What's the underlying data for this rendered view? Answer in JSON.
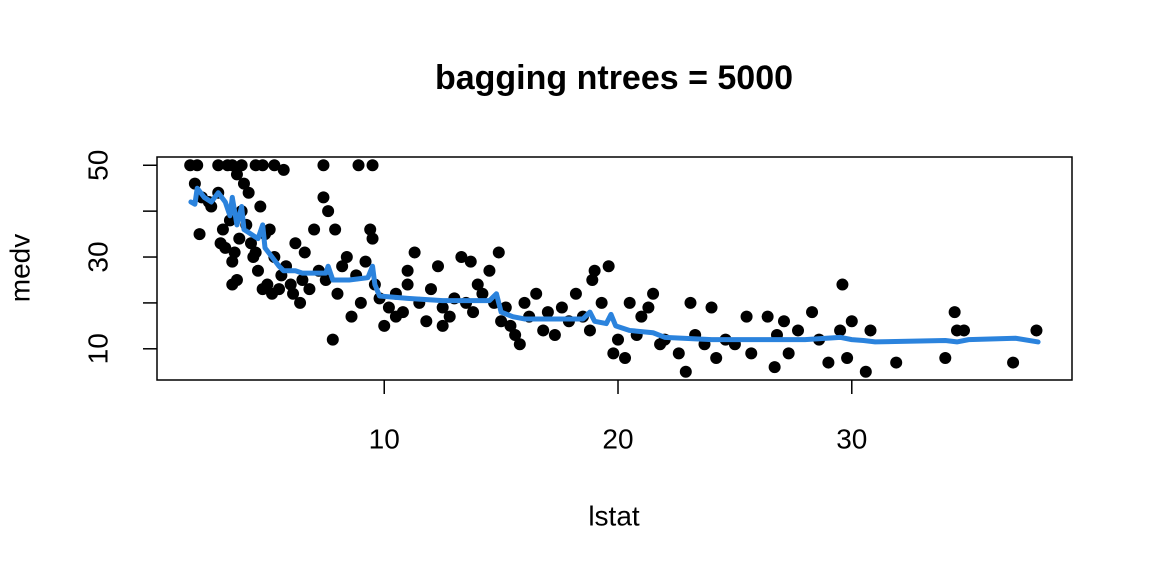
{
  "chart_data": {
    "type": "scatter",
    "title": "bagging ntrees =  5000",
    "x_label": "lstat",
    "y_label": "medv",
    "xlim": [
      0.28,
      39.42
    ],
    "ylim": [
      3.2,
      51.8
    ],
    "xticks": [
      10,
      20,
      30
    ],
    "yticks": [
      10,
      {
        "value": 20,
        "label": null
      },
      30,
      {
        "value": 40,
        "label": null
      },
      50
    ],
    "points": {
      "color": "#000000",
      "x": [
        1.7,
        2.0,
        2.9,
        3.3,
        3.5,
        3.9,
        4.5,
        4.8,
        5.3,
        7.4,
        8.9,
        9.5,
        5.7,
        3.7,
        1.9,
        2.2,
        2.6,
        3.5,
        11.0,
        18.9,
        10.5,
        12.5,
        13.7,
        2.1,
        2.5,
        2.9,
        3.0,
        3.1,
        3.2,
        3.4,
        3.5,
        3.6,
        3.7,
        3.8,
        3.9,
        4.0,
        4.1,
        4.2,
        4.3,
        4.4,
        4.5,
        4.6,
        4.7,
        4.8,
        4.9,
        5.0,
        5.1,
        5.2,
        5.3,
        5.5,
        5.6,
        5.8,
        6.0,
        6.1,
        6.2,
        6.4,
        6.5,
        6.6,
        6.8,
        7.0,
        7.2,
        7.4,
        7.5,
        7.6,
        7.8,
        7.9,
        8.0,
        8.2,
        8.4,
        8.6,
        8.8,
        9.0,
        9.2,
        9.4,
        9.5,
        9.6,
        9.8,
        10.0,
        10.2,
        10.5,
        10.8,
        11.0,
        11.3,
        11.5,
        11.8,
        12.0,
        12.3,
        12.5,
        12.8,
        13.0,
        13.3,
        13.5,
        13.8,
        14.0,
        14.2,
        14.5,
        14.7,
        14.9,
        15.0,
        15.2,
        15.4,
        15.6,
        15.8,
        16.0,
        16.2,
        16.5,
        16.8,
        17.0,
        17.3,
        17.6,
        17.9,
        18.2,
        18.5,
        18.8,
        19.0,
        19.3,
        19.6,
        19.8,
        20.0,
        20.3,
        20.5,
        20.8,
        21.0,
        21.3,
        21.5,
        21.8,
        22.0,
        22.6,
        22.9,
        23.1,
        23.3,
        23.7,
        24.0,
        24.2,
        24.6,
        25.0,
        25.5,
        25.7,
        26.4,
        26.7,
        26.8,
        27.1,
        27.3,
        27.7,
        28.3,
        28.6,
        29.0,
        29.5,
        29.6,
        29.8,
        30.0,
        30.6,
        30.8,
        31.9,
        34.0,
        34.4,
        34.5,
        34.8,
        36.9,
        37.9
      ],
      "y": [
        50,
        50,
        50,
        50,
        50,
        50,
        50,
        50,
        50,
        50,
        50,
        50,
        49,
        48,
        46,
        43,
        41,
        24,
        27,
        25,
        17,
        15,
        29,
        35,
        42,
        44,
        33,
        36,
        32,
        38,
        29,
        31,
        25,
        34,
        40,
        46,
        37,
        44,
        33,
        30,
        31,
        27,
        41,
        23,
        35,
        24,
        36,
        22,
        30,
        23,
        26,
        28,
        24,
        22,
        33,
        20,
        25,
        31,
        23,
        36,
        27,
        43,
        25,
        40,
        12,
        36,
        22,
        28,
        30,
        17,
        26,
        20,
        29,
        36,
        34,
        24,
        21,
        15,
        19,
        22,
        18,
        24,
        31,
        20,
        16,
        23,
        28,
        19,
        17,
        21,
        30,
        20,
        18,
        24,
        22,
        27,
        20,
        31,
        16,
        19,
        15,
        13,
        11,
        20,
        17,
        22,
        14,
        18,
        13,
        19,
        16,
        22,
        17,
        14,
        27,
        20,
        28,
        9,
        12,
        8,
        20,
        13,
        17,
        19,
        22,
        11,
        12,
        9,
        5,
        20,
        13,
        11,
        19,
        8,
        12,
        11,
        17,
        9,
        17,
        6,
        13,
        16,
        9,
        14,
        18,
        12,
        7,
        14,
        24,
        8,
        16,
        5,
        14,
        7,
        8,
        18,
        14,
        14,
        7,
        14
      ]
    },
    "fit": {
      "color": "#2b83dd",
      "x": [
        1.73,
        1.9,
        2.0,
        2.3,
        2.6,
        2.9,
        3.2,
        3.4,
        3.5,
        3.7,
        3.9,
        4.0,
        4.3,
        4.6,
        4.8,
        4.9,
        5.2,
        5.5,
        5.7,
        6.2,
        6.5,
        7.5,
        7.6,
        7.8,
        8.5,
        9.3,
        9.5,
        9.6,
        9.8,
        11.0,
        12.5,
        14.5,
        14.8,
        15.0,
        15.5,
        16.0,
        18.5,
        18.8,
        19.0,
        19.5,
        19.7,
        19.9,
        20.5,
        21.5,
        22.0,
        24.0,
        26.0,
        28.0,
        29.5,
        30.0,
        30.5,
        31.0,
        34.0,
        34.5,
        35.0,
        37.0,
        37.97
      ],
      "y": [
        42,
        41.5,
        45,
        43,
        42,
        44,
        42,
        39,
        43,
        37,
        41,
        36,
        35,
        34,
        37,
        32,
        30,
        28,
        27,
        27,
        26.5,
        26.5,
        28,
        25,
        25,
        25.5,
        28,
        24,
        21.5,
        21,
        20.5,
        20.5,
        22,
        18,
        17,
        16.5,
        16.5,
        18,
        16,
        15.5,
        17.5,
        15,
        14,
        13.5,
        12.5,
        12,
        12,
        12,
        12.5,
        12,
        11.8,
        11.5,
        11.8,
        11.5,
        12,
        12.3,
        11.5
      ]
    }
  }
}
